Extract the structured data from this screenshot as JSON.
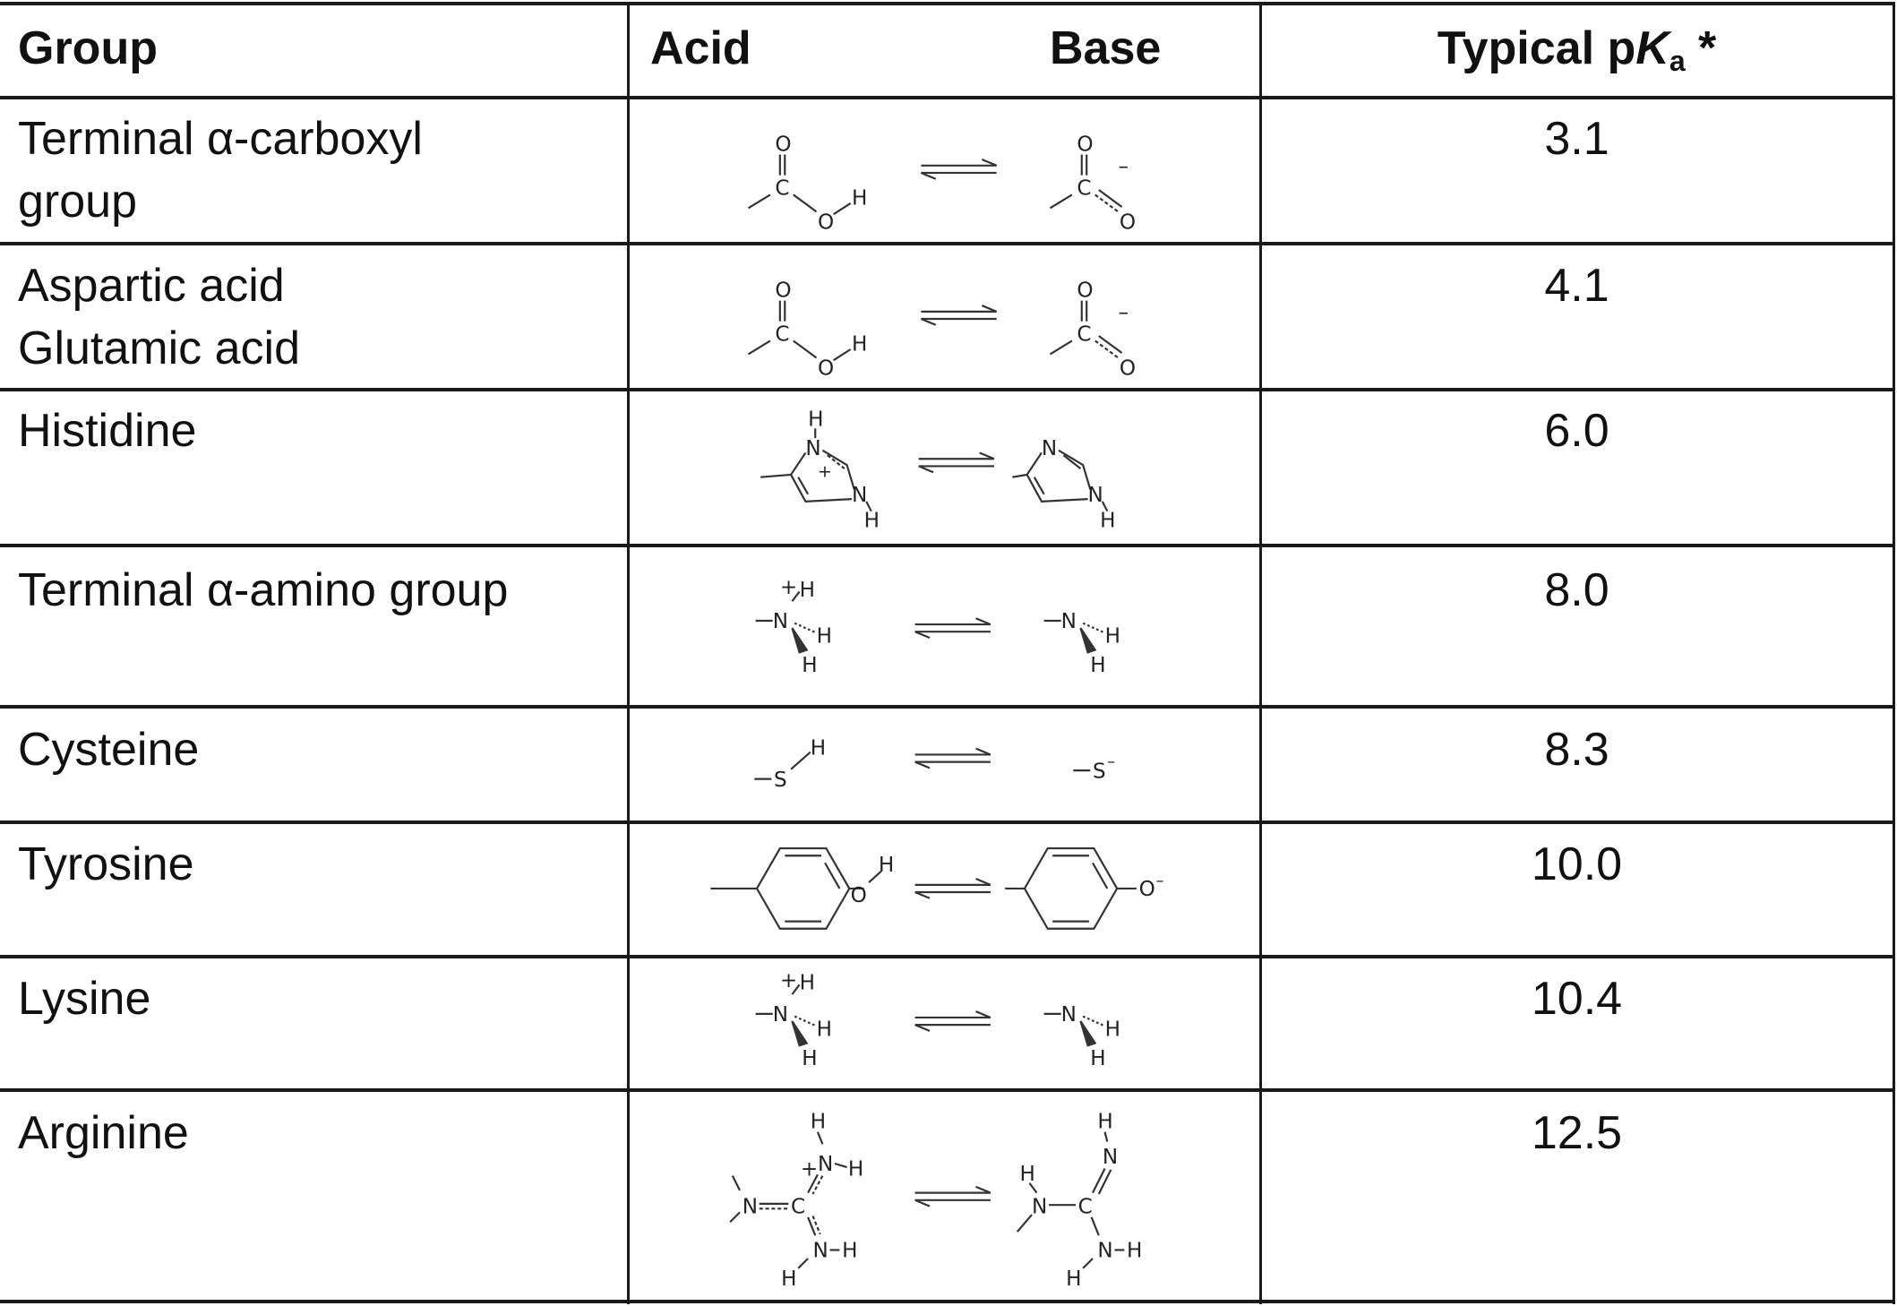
{
  "header": {
    "group": "Group",
    "acid": "Acid",
    "base": "Base",
    "pka_prefix": "Typical p",
    "pka_k": "K",
    "pka_sub": "a",
    "pka_suffix": " *"
  },
  "rows": [
    {
      "group_lines": [
        "Terminal α-carboxyl",
        "group"
      ],
      "pka": "3.1"
    },
    {
      "group_lines": [
        "Aspartic acid",
        "Glutamic acid"
      ],
      "pka": "4.1"
    },
    {
      "group_lines": [
        "Histidine"
      ],
      "pka": "6.0"
    },
    {
      "group_lines": [
        "Terminal α-amino group"
      ],
      "pka": "8.0"
    },
    {
      "group_lines": [
        "Cysteine"
      ],
      "pka": "8.3"
    },
    {
      "group_lines": [
        "Tyrosine"
      ],
      "pka": "10.0"
    },
    {
      "group_lines": [
        "Lysine"
      ],
      "pka": "10.4"
    },
    {
      "group_lines": [
        "Arginine"
      ],
      "pka": "12.5"
    }
  ]
}
